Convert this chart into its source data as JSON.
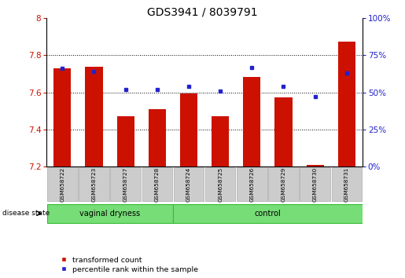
{
  "title": "GDS3941 / 8039791",
  "samples": [
    "GSM658722",
    "GSM658723",
    "GSM658727",
    "GSM658728",
    "GSM658724",
    "GSM658725",
    "GSM658726",
    "GSM658729",
    "GSM658730",
    "GSM658731"
  ],
  "red_values": [
    7.73,
    7.74,
    7.47,
    7.51,
    7.595,
    7.47,
    7.685,
    7.575,
    7.21,
    7.875
  ],
  "blue_values": [
    66,
    64,
    52,
    52,
    54,
    51,
    67,
    54,
    47,
    63
  ],
  "y_min": 7.2,
  "y_max": 8.0,
  "y_ticks_red": [
    7.2,
    7.4,
    7.6,
    7.8,
    8.0
  ],
  "y_ticks_blue": [
    0,
    25,
    50,
    75,
    100
  ],
  "bar_color": "#cc1100",
  "blue_color": "#2222cc",
  "group1_label": "vaginal dryness",
  "group2_label": "control",
  "group1_count": 4,
  "group2_count": 6,
  "group_bg_color": "#77dd77",
  "disease_state_label": "disease state",
  "legend_red": "transformed count",
  "legend_blue": "percentile rank within the sample",
  "bar_baseline": 7.2,
  "dotted_yticks": [
    7.4,
    7.6,
    7.8
  ],
  "title_fontsize": 10,
  "tick_fontsize": 7.5,
  "bar_width": 0.55
}
